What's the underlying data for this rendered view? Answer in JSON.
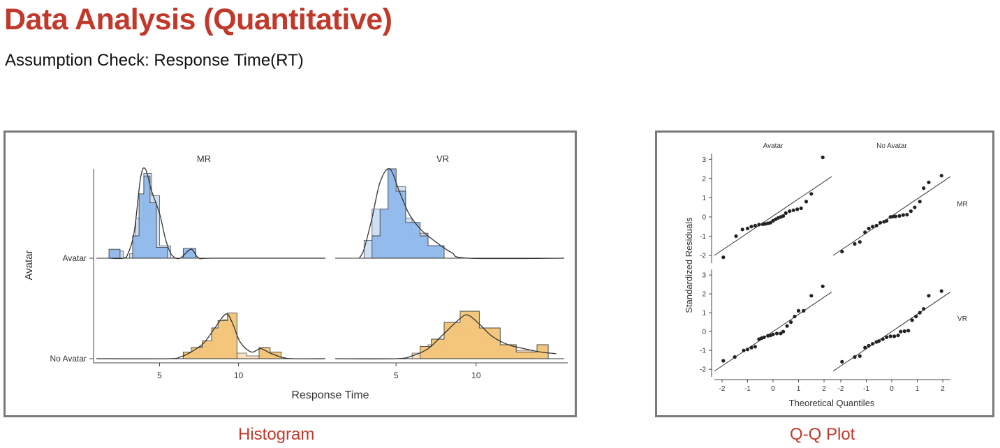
{
  "page": {
    "title": "Data Analysis (Quantitative)",
    "subtitle": "Assumption Check: Response Time(RT)"
  },
  "colors": {
    "accent": "#c0392b",
    "blue_fill": "#8fb9ec",
    "blue_light": "#cfe0f5",
    "orange_fill": "#f2c477",
    "orange_light": "#f9e3c2",
    "border": "#7a7a7a"
  },
  "chart_data": [
    {
      "type": "histogram",
      "caption": "Histogram",
      "xlabel": "Response Time",
      "ylabel": "Avatar",
      "x_ticks": [
        5,
        10
      ],
      "x_range": [
        1,
        15
      ],
      "facets": [
        {
          "label": "MR",
          "xlim": [
            1,
            15.5
          ]
        },
        {
          "label": "VR",
          "xlim": [
            1.2,
            15.5
          ]
        }
      ],
      "rows": [
        "Avatar",
        "No Avatar"
      ],
      "panels": [
        {
          "facet": "MR",
          "row": "Avatar",
          "color": "blue",
          "light": [
            [
              1.8,
              0.08
            ],
            [
              2.7,
              0.0
            ],
            [
              3.1,
              0.05
            ],
            [
              3.5,
              0.45
            ],
            [
              4.0,
              0.95
            ],
            [
              4.5,
              0.7
            ],
            [
              5.0,
              0.14
            ],
            [
              5.7,
              0.0
            ],
            [
              6.5,
              0.06
            ],
            [
              7.3,
              0.0
            ]
          ],
          "dark": [
            [
              1.8,
              0.1
            ],
            [
              2.5,
              0.0
            ],
            [
              3.3,
              0.25
            ],
            [
              3.7,
              0.72
            ],
            [
              4.0,
              0.92
            ],
            [
              4.4,
              0.62
            ],
            [
              4.8,
              0.12
            ],
            [
              5.5,
              0.0
            ],
            [
              6.5,
              0.11
            ],
            [
              7.3,
              0.0
            ]
          ],
          "density": [
            [
              1.8,
              0.0
            ],
            [
              2.7,
              0.0
            ],
            [
              3.0,
              0.05
            ],
            [
              3.4,
              0.3
            ],
            [
              3.8,
              0.9
            ],
            [
              4.1,
              1.0
            ],
            [
              4.5,
              0.75
            ],
            [
              5.0,
              0.5
            ],
            [
              5.4,
              0.2
            ],
            [
              5.8,
              0.03
            ],
            [
              6.3,
              0.0
            ],
            [
              7.0,
              0.1
            ],
            [
              7.5,
              0.0
            ],
            [
              8.5,
              0.0
            ],
            [
              15.5,
              0.0
            ]
          ]
        },
        {
          "facet": "VR",
          "row": "Avatar",
          "color": "blue",
          "light": [
            [
              3.0,
              0.2
            ],
            [
              3.5,
              0.55
            ],
            [
              4.5,
              1.0
            ],
            [
              5.0,
              0.8
            ],
            [
              5.6,
              0.45
            ],
            [
              6.0,
              0.28
            ],
            [
              7.0,
              0.14
            ],
            [
              7.8,
              0.0
            ]
          ],
          "dark": [
            [
              3.5,
              0.25
            ],
            [
              4.0,
              0.55
            ],
            [
              4.5,
              1.0
            ],
            [
              5.0,
              0.75
            ],
            [
              5.6,
              0.4
            ],
            [
              6.5,
              0.25
            ],
            [
              7.0,
              0.14
            ],
            [
              8.0,
              0.0
            ]
          ],
          "density": [
            [
              2.7,
              0.0
            ],
            [
              3.0,
              0.1
            ],
            [
              3.5,
              0.45
            ],
            [
              4.0,
              0.85
            ],
            [
              4.6,
              1.0
            ],
            [
              5.2,
              0.75
            ],
            [
              5.8,
              0.5
            ],
            [
              6.5,
              0.33
            ],
            [
              7.2,
              0.22
            ],
            [
              7.8,
              0.14
            ],
            [
              8.5,
              0.06
            ],
            [
              9.5,
              0.0
            ],
            [
              15.5,
              0.0
            ]
          ]
        },
        {
          "facet": "MR",
          "row": "No Avatar",
          "color": "orange",
          "light": [
            [
              6.5,
              0.1
            ],
            [
              7.5,
              0.22
            ],
            [
              8.3,
              0.45
            ],
            [
              9.0,
              0.7
            ],
            [
              9.6,
              0.1
            ],
            [
              10.5,
              0.05
            ],
            [
              11.5,
              0.1
            ],
            [
              12.5,
              0.0
            ]
          ],
          "dark": [
            [
              6.5,
              0.12
            ],
            [
              7.0,
              0.2
            ],
            [
              7.7,
              0.32
            ],
            [
              8.3,
              0.55
            ],
            [
              8.7,
              0.68
            ],
            [
              9.3,
              0.82
            ],
            [
              9.9,
              0.0
            ],
            [
              11.3,
              0.2
            ],
            [
              12.0,
              0.12
            ],
            [
              12.7,
              0.0
            ]
          ],
          "density": [
            [
              1.0,
              0.0
            ],
            [
              5.5,
              0.0
            ],
            [
              6.3,
              0.03
            ],
            [
              7.0,
              0.12
            ],
            [
              7.8,
              0.28
            ],
            [
              8.5,
              0.55
            ],
            [
              9.2,
              0.8
            ],
            [
              9.6,
              0.65
            ],
            [
              10.1,
              0.3
            ],
            [
              10.8,
              0.12
            ],
            [
              11.4,
              0.18
            ],
            [
              12.0,
              0.1
            ],
            [
              12.8,
              0.02
            ],
            [
              13.5,
              0.0
            ],
            [
              15.5,
              0.0
            ]
          ]
        },
        {
          "facet": "VR",
          "row": "No Avatar",
          "color": "orange",
          "light": [
            [
              6.0,
              0.1
            ],
            [
              7.0,
              0.25
            ],
            [
              8.0,
              0.6
            ],
            [
              9.0,
              0.55
            ],
            [
              10.5,
              0.35
            ],
            [
              11.5,
              0.25
            ],
            [
              12.5,
              0.15
            ],
            [
              13.5,
              0.0
            ]
          ],
          "dark": [
            [
              6.5,
              0.22
            ],
            [
              7.2,
              0.35
            ],
            [
              8.0,
              0.65
            ],
            [
              9.0,
              0.85
            ],
            [
              10.2,
              0.55
            ],
            [
              11.5,
              0.25
            ],
            [
              12.5,
              0.12
            ],
            [
              13.8,
              0.25
            ],
            [
              14.5,
              0.0
            ]
          ],
          "density": [
            [
              1.2,
              0.0
            ],
            [
              5.0,
              0.0
            ],
            [
              6.0,
              0.05
            ],
            [
              7.0,
              0.18
            ],
            [
              8.0,
              0.45
            ],
            [
              9.0,
              0.72
            ],
            [
              9.5,
              0.78
            ],
            [
              10.2,
              0.62
            ],
            [
              11.0,
              0.4
            ],
            [
              12.0,
              0.25
            ],
            [
              13.0,
              0.18
            ],
            [
              14.0,
              0.12
            ],
            [
              15.0,
              0.09
            ]
          ]
        }
      ]
    },
    {
      "type": "scatter",
      "caption": "Q-Q Plot",
      "xlabel": "Theoretical Quantiles",
      "ylabel": "Standardized Residuals",
      "x_ticks": [
        -2,
        -1,
        0,
        1,
        2
      ],
      "y_ticks": [
        -2,
        -1,
        0,
        1,
        2,
        3
      ],
      "xlim": [
        -2.3,
        2.3
      ],
      "ylim": [
        -2.4,
        3.3
      ],
      "columns": [
        "Avatar",
        "No Avatar"
      ],
      "rows": [
        "MR",
        "VR"
      ],
      "panels": [
        {
          "col": "Avatar",
          "row": "MR",
          "line": [
            [
              -2.3,
              -2.0
            ],
            [
              2.3,
              2.1
            ]
          ],
          "points": [
            [
              -1.95,
              -2.1
            ],
            [
              -1.45,
              -1.0
            ],
            [
              -1.2,
              -0.65
            ],
            [
              -1.0,
              -0.6
            ],
            [
              -0.85,
              -0.5
            ],
            [
              -0.7,
              -0.45
            ],
            [
              -0.55,
              -0.4
            ],
            [
              -0.4,
              -0.38
            ],
            [
              -0.3,
              -0.36
            ],
            [
              -0.2,
              -0.33
            ],
            [
              -0.1,
              -0.3
            ],
            [
              0.0,
              -0.2
            ],
            [
              0.1,
              -0.12
            ],
            [
              0.2,
              -0.05
            ],
            [
              0.3,
              0.0
            ],
            [
              0.4,
              0.05
            ],
            [
              0.5,
              0.2
            ],
            [
              0.65,
              0.3
            ],
            [
              0.8,
              0.35
            ],
            [
              0.95,
              0.4
            ],
            [
              1.1,
              0.45
            ],
            [
              1.3,
              0.8
            ],
            [
              1.5,
              1.2
            ],
            [
              1.95,
              3.1
            ]
          ]
        },
        {
          "col": "No Avatar",
          "row": "MR",
          "line": [
            [
              -2.3,
              -2.0
            ],
            [
              2.3,
              2.1
            ]
          ],
          "points": [
            [
              -1.95,
              -1.8
            ],
            [
              -1.45,
              -1.4
            ],
            [
              -1.25,
              -1.3
            ],
            [
              -1.05,
              -0.8
            ],
            [
              -0.9,
              -0.6
            ],
            [
              -0.75,
              -0.5
            ],
            [
              -0.6,
              -0.45
            ],
            [
              -0.45,
              -0.3
            ],
            [
              -0.3,
              -0.25
            ],
            [
              -0.2,
              -0.2
            ],
            [
              -0.05,
              0.0
            ],
            [
              0.05,
              0.02
            ],
            [
              0.15,
              0.03
            ],
            [
              0.3,
              0.05
            ],
            [
              0.45,
              0.1
            ],
            [
              0.6,
              0.12
            ],
            [
              0.75,
              0.3
            ],
            [
              0.9,
              0.5
            ],
            [
              1.1,
              0.8
            ],
            [
              1.25,
              1.5
            ],
            [
              1.45,
              1.8
            ],
            [
              1.95,
              2.15
            ]
          ]
        },
        {
          "col": "Avatar",
          "row": "VR",
          "line": [
            [
              -2.3,
              -2.1
            ],
            [
              2.3,
              2.1
            ]
          ],
          "points": [
            [
              -1.95,
              -1.55
            ],
            [
              -1.5,
              -1.35
            ],
            [
              -1.15,
              -1.0
            ],
            [
              -1.0,
              -0.95
            ],
            [
              -0.85,
              -0.85
            ],
            [
              -0.7,
              -0.8
            ],
            [
              -0.55,
              -0.4
            ],
            [
              -0.45,
              -0.35
            ],
            [
              -0.35,
              -0.3
            ],
            [
              -0.2,
              -0.22
            ],
            [
              -0.1,
              -0.2
            ],
            [
              0.0,
              -0.15
            ],
            [
              0.15,
              -0.1
            ],
            [
              0.3,
              -0.1
            ],
            [
              0.4,
              0.0
            ],
            [
              0.55,
              0.3
            ],
            [
              0.7,
              0.5
            ],
            [
              0.85,
              0.8
            ],
            [
              1.0,
              1.1
            ],
            [
              1.2,
              1.1
            ],
            [
              1.5,
              1.9
            ],
            [
              1.95,
              2.4
            ]
          ]
        },
        {
          "col": "No Avatar",
          "row": "VR",
          "line": [
            [
              -2.3,
              -2.1
            ],
            [
              2.3,
              2.1
            ]
          ],
          "points": [
            [
              -1.95,
              -1.6
            ],
            [
              -1.45,
              -1.35
            ],
            [
              -1.25,
              -1.3
            ],
            [
              -1.05,
              -0.85
            ],
            [
              -0.9,
              -0.75
            ],
            [
              -0.75,
              -0.65
            ],
            [
              -0.6,
              -0.55
            ],
            [
              -0.5,
              -0.5
            ],
            [
              -0.35,
              -0.4
            ],
            [
              -0.2,
              -0.3
            ],
            [
              -0.05,
              -0.25
            ],
            [
              0.1,
              -0.25
            ],
            [
              0.25,
              -0.2
            ],
            [
              0.35,
              0.0
            ],
            [
              0.5,
              0.02
            ],
            [
              0.65,
              0.05
            ],
            [
              0.8,
              0.6
            ],
            [
              0.95,
              0.8
            ],
            [
              1.1,
              1.0
            ],
            [
              1.25,
              1.2
            ],
            [
              1.45,
              1.9
            ],
            [
              1.95,
              2.15
            ]
          ]
        }
      ]
    }
  ]
}
